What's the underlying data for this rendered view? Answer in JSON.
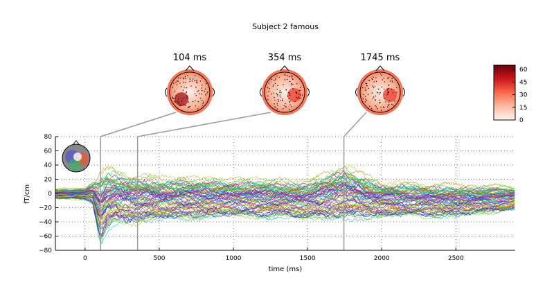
{
  "chart_data": {
    "type": "line",
    "title": "Subject 2 famous",
    "xlabel": "time (ms)",
    "ylabel": "fT/cm",
    "xlim": [
      -200,
      2900
    ],
    "ylim": [
      -80,
      80
    ],
    "xticks": [
      0,
      500,
      1000,
      1500,
      2000,
      2500
    ],
    "yticks": [
      -80,
      -60,
      -40,
      -20,
      0,
      20,
      40,
      60,
      80
    ],
    "grid": true,
    "topomaps": [
      {
        "label": "104 ms",
        "time": 104
      },
      {
        "label": "354 ms",
        "time": 354
      },
      {
        "label": "1745 ms",
        "time": 1745
      }
    ],
    "colorbar": {
      "ticks": [
        0,
        15,
        30,
        45,
        60
      ],
      "range": [
        0,
        65
      ]
    },
    "butterfly_envelope": [
      {
        "t": -200,
        "lo": -8,
        "hi": 8
      },
      {
        "t": 0,
        "lo": -10,
        "hi": 10
      },
      {
        "t": 50,
        "lo": -15,
        "hi": 20
      },
      {
        "t": 104,
        "lo": -75,
        "hi": 40
      },
      {
        "t": 150,
        "lo": -55,
        "hi": 45
      },
      {
        "t": 200,
        "lo": -45,
        "hi": 40
      },
      {
        "t": 354,
        "lo": -45,
        "hi": 35
      },
      {
        "t": 500,
        "lo": -40,
        "hi": 30
      },
      {
        "t": 1000,
        "lo": -35,
        "hi": 28
      },
      {
        "t": 1500,
        "lo": -38,
        "hi": 25
      },
      {
        "t": 1745,
        "lo": -40,
        "hi": 48
      },
      {
        "t": 2000,
        "lo": -35,
        "hi": 22
      },
      {
        "t": 2500,
        "lo": -35,
        "hi": 18
      },
      {
        "t": 2900,
        "lo": -25,
        "hi": 15
      }
    ],
    "colors": {
      "axis": "#000000",
      "grid": "#000000",
      "marker_line": "#9a9a9a",
      "cmap_low": "#fff5f0",
      "cmap_high": "#67000d"
    }
  }
}
